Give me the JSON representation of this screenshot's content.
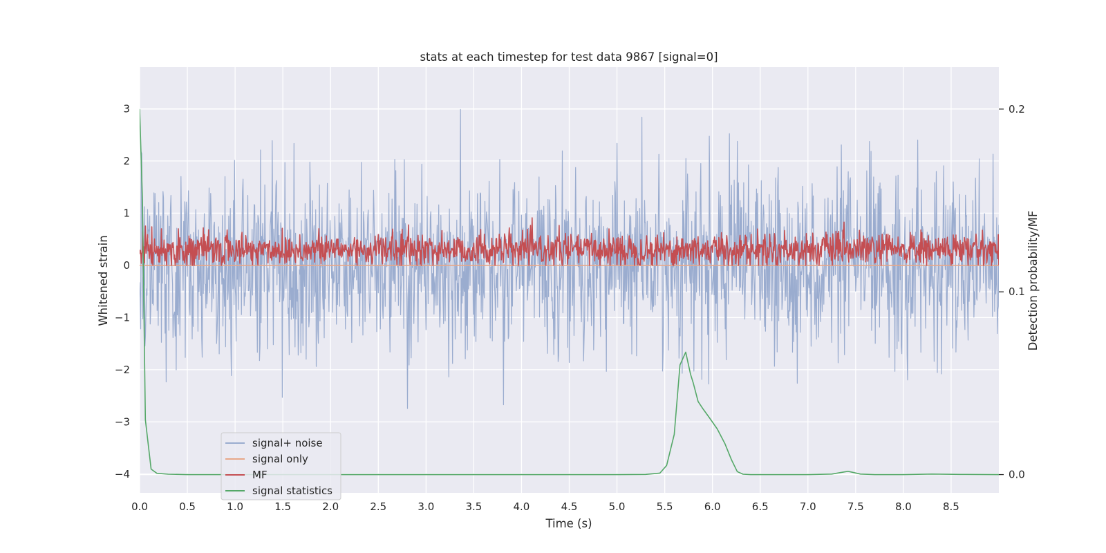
{
  "chart_data": {
    "type": "line",
    "title": "stats at each timestep for test data 9867 [signal=0]",
    "xlabel": "Time (s)",
    "ylabel": "Whitened strain",
    "y2label": "Detection probability/MF",
    "xlim": [
      0.0,
      9.0
    ],
    "ylim": [
      -4.36,
      3.8
    ],
    "y2lim": [
      -0.01,
      0.223
    ],
    "xticks": [
      0.0,
      0.5,
      1.0,
      1.5,
      2.0,
      2.5,
      3.0,
      3.5,
      4.0,
      4.5,
      5.0,
      5.5,
      6.0,
      6.5,
      7.0,
      7.5,
      8.0,
      8.5
    ],
    "xtick_labels": [
      "0.0",
      "0.5",
      "1.0",
      "1.5",
      "2.0",
      "2.5",
      "3.0",
      "3.5",
      "4.0",
      "4.5",
      "5.0",
      "5.5",
      "6.0",
      "6.5",
      "7.0",
      "7.5",
      "8.0",
      "8.5"
    ],
    "yticks": [
      -4,
      -3,
      -2,
      -1,
      0,
      1,
      2,
      3
    ],
    "ytick_labels": [
      "−4",
      "−3",
      "−2",
      "−1",
      "0",
      "1",
      "2",
      "3"
    ],
    "y2ticks": [
      0.0,
      0.1,
      0.2
    ],
    "y2tick_labels": [
      "0.0",
      "0.1",
      "0.2"
    ],
    "grid": true,
    "legend_position": "lower-left",
    "series": [
      {
        "name": "signal+ noise",
        "axis": "left",
        "color": "#9aaccf",
        "style": "dense noise spanning approx -2.5 to +2.5 with spikes near +3.5 and -4",
        "noise_amplitude": 0.85,
        "points_per_second": 180
      },
      {
        "name": "signal only",
        "axis": "left",
        "color": "#e8a788",
        "x": [
          0.0,
          9.0
        ],
        "values": [
          0.0,
          0.0
        ]
      },
      {
        "name": "MF",
        "axis": "left",
        "color": "#c44e52",
        "style": "noisy band between approx 0 and 0.9",
        "mean": 0.3,
        "points_per_second": 180
      },
      {
        "name": "signal statistics",
        "axis": "right",
        "color": "#55a868",
        "x": [
          0.0,
          0.03,
          0.06,
          0.12,
          0.18,
          0.3,
          0.5,
          1.0,
          2.0,
          3.0,
          4.0,
          5.0,
          5.3,
          5.45,
          5.52,
          5.6,
          5.66,
          5.72,
          5.77,
          5.8,
          5.85,
          5.9,
          5.97,
          6.05,
          6.13,
          6.2,
          6.26,
          6.32,
          6.4,
          6.6,
          7.0,
          7.25,
          7.42,
          7.55,
          7.7,
          8.0,
          8.3,
          8.6,
          9.0
        ],
        "values": [
          0.2,
          0.15,
          0.03,
          0.003,
          0.0007,
          0.0002,
          0.0,
          0.0,
          0.0,
          0.0,
          0.0,
          0.0,
          0.0001,
          0.0008,
          0.005,
          0.022,
          0.06,
          0.067,
          0.055,
          0.05,
          0.04,
          0.036,
          0.031,
          0.025,
          0.017,
          0.008,
          0.0016,
          0.0002,
          0.0,
          0.0,
          0.0,
          0.0003,
          0.0018,
          0.0003,
          0.0,
          0.0,
          0.0003,
          0.0001,
          0.0
        ]
      }
    ]
  }
}
